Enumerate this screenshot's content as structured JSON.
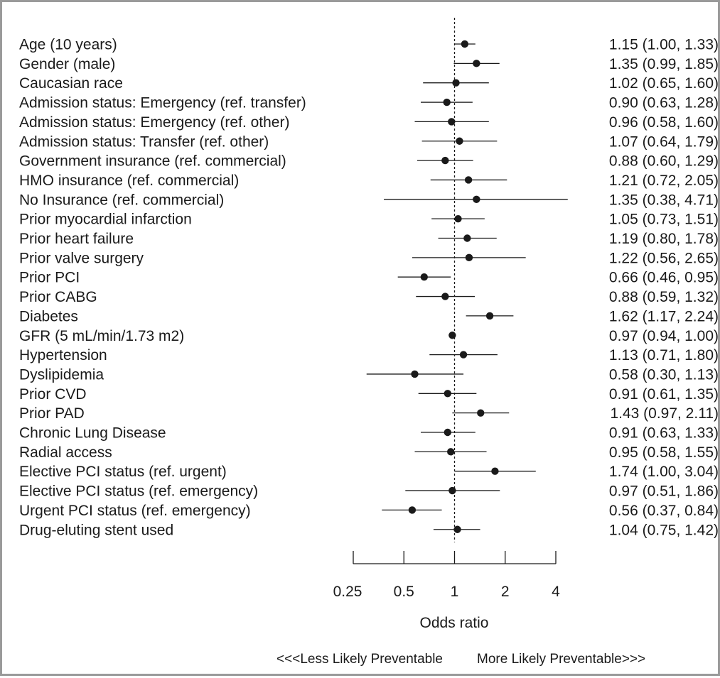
{
  "chart_data": {
    "type": "forest",
    "xlabel": "Odds ratio",
    "x_scale": "log2",
    "xlim": [
      0.25,
      4
    ],
    "xticks": [
      0.25,
      0.5,
      1,
      2,
      4
    ],
    "xtick_labels": [
      "0.25",
      "0.5",
      "1",
      "2",
      "4"
    ],
    "reference_line": 1,
    "direction_left": "<<<Less Likely Preventable",
    "direction_right": "More Likely Preventable>>>",
    "rows": [
      {
        "label": "Age (10 years)",
        "or": 1.15,
        "lo": 1.0,
        "hi": 1.33,
        "text": "1.15 (1.00, 1.33)"
      },
      {
        "label": "Gender (male)",
        "or": 1.35,
        "lo": 0.99,
        "hi": 1.85,
        "text": "1.35 (0.99, 1.85)"
      },
      {
        "label": "Caucasian race",
        "or": 1.02,
        "lo": 0.65,
        "hi": 1.6,
        "text": "1.02 (0.65, 1.60)"
      },
      {
        "label": "Admission status: Emergency (ref. transfer)",
        "or": 0.9,
        "lo": 0.63,
        "hi": 1.28,
        "text": "0.90 (0.63, 1.28)"
      },
      {
        "label": "Admission status: Emergency (ref. other)",
        "or": 0.96,
        "lo": 0.58,
        "hi": 1.6,
        "text": "0.96 (0.58, 1.60)"
      },
      {
        "label": "Admission status: Transfer (ref. other)",
        "or": 1.07,
        "lo": 0.64,
        "hi": 1.79,
        "text": "1.07 (0.64, 1.79)"
      },
      {
        "label": "Government insurance (ref. commercial)",
        "or": 0.88,
        "lo": 0.6,
        "hi": 1.29,
        "text": "0.88 (0.60, 1.29)"
      },
      {
        "label": "HMO insurance (ref. commercial)",
        "or": 1.21,
        "lo": 0.72,
        "hi": 2.05,
        "text": "1.21 (0.72, 2.05)"
      },
      {
        "label": "No Insurance (ref. commercial)",
        "or": 1.35,
        "lo": 0.38,
        "hi": 4.71,
        "text": "1.35 (0.38, 4.71)"
      },
      {
        "label": "Prior myocardial infarction",
        "or": 1.05,
        "lo": 0.73,
        "hi": 1.51,
        "text": "1.05 (0.73, 1.51)"
      },
      {
        "label": "Prior heart failure",
        "or": 1.19,
        "lo": 0.8,
        "hi": 1.78,
        "text": "1.19 (0.80, 1.78)"
      },
      {
        "label": "Prior valve surgery",
        "or": 1.22,
        "lo": 0.56,
        "hi": 2.65,
        "text": "1.22 (0.56, 2.65)"
      },
      {
        "label": "Prior PCI",
        "or": 0.66,
        "lo": 0.46,
        "hi": 0.95,
        "text": "0.66 (0.46, 0.95)"
      },
      {
        "label": "Prior CABG",
        "or": 0.88,
        "lo": 0.59,
        "hi": 1.32,
        "text": "0.88 (0.59, 1.32)"
      },
      {
        "label": "Diabetes",
        "or": 1.62,
        "lo": 1.17,
        "hi": 2.24,
        "text": "1.62 (1.17, 2.24)"
      },
      {
        "label": "GFR (5 mL/min/1.73 m2)",
        "or": 0.97,
        "lo": 0.94,
        "hi": 1.0,
        "text": "0.97 (0.94, 1.00)"
      },
      {
        "label": "Hypertension",
        "or": 1.13,
        "lo": 0.71,
        "hi": 1.8,
        "text": "1.13 (0.71, 1.80)"
      },
      {
        "label": "Dyslipidemia",
        "or": 0.58,
        "lo": 0.3,
        "hi": 1.13,
        "text": "0.58 (0.30, 1.13)"
      },
      {
        "label": "Prior CVD",
        "or": 0.91,
        "lo": 0.61,
        "hi": 1.35,
        "text": "0.91 (0.61, 1.35)"
      },
      {
        "label": "Prior PAD",
        "or": 1.43,
        "lo": 0.97,
        "hi": 2.11,
        "text": "1.43 (0.97, 2.11)"
      },
      {
        "label": "Chronic Lung Disease",
        "or": 0.91,
        "lo": 0.63,
        "hi": 1.33,
        "text": "0.91 (0.63, 1.33)"
      },
      {
        "label": "Radial access",
        "or": 0.95,
        "lo": 0.58,
        "hi": 1.55,
        "text": "0.95 (0.58, 1.55)"
      },
      {
        "label": "Elective PCI status (ref. urgent)",
        "or": 1.74,
        "lo": 1.0,
        "hi": 3.04,
        "text": "1.74 (1.00, 3.04)"
      },
      {
        "label": "Elective PCI status (ref. emergency)",
        "or": 0.97,
        "lo": 0.51,
        "hi": 1.86,
        "text": "0.97 (0.51, 1.86)"
      },
      {
        "label": "Urgent PCI status (ref. emergency)",
        "or": 0.56,
        "lo": 0.37,
        "hi": 0.84,
        "text": "0.56 (0.37, 0.84)"
      },
      {
        "label": "Drug-eluting stent used",
        "or": 1.04,
        "lo": 0.75,
        "hi": 1.42,
        "text": "1.04 (0.75, 1.42)"
      }
    ]
  }
}
